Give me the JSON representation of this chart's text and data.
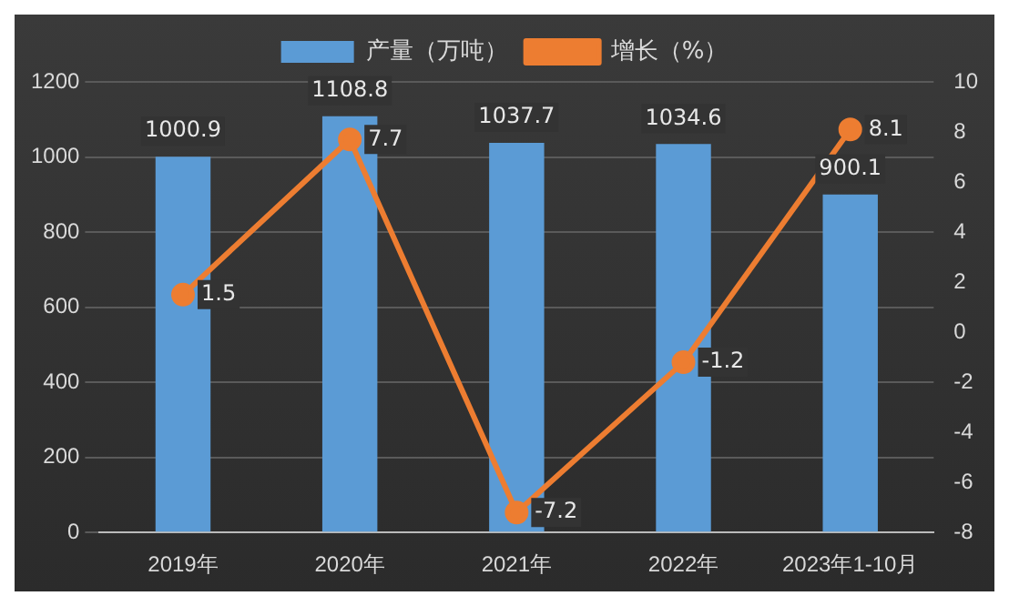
{
  "chart_data": {
    "type": "bar",
    "categories": [
      "2019年",
      "2020年",
      "2021年",
      "2022年",
      "2023年1-10月"
    ],
    "series": [
      {
        "name": "产量（万吨）",
        "color": "#5b9bd5",
        "values": [
          1000.9,
          1108.8,
          1037.7,
          1034.6,
          900.1
        ]
      },
      {
        "name": "增长（%）",
        "type": "line",
        "axis": "y2",
        "color": "#ed7d31",
        "values": [
          1.5,
          7.7,
          -7.2,
          -1.2,
          8.1
        ]
      }
    ],
    "ylim": [
      0,
      1200
    ],
    "yticks": [
      0,
      200,
      400,
      600,
      800,
      1000,
      1200
    ],
    "y2lim": [
      -8,
      10
    ],
    "y2ticks": [
      -8,
      -6,
      -4,
      -2,
      0,
      2,
      4,
      6,
      8,
      10
    ],
    "grid": "y",
    "legend": "top",
    "marker": "circle",
    "line_style": "solid",
    "data_labels": true
  }
}
